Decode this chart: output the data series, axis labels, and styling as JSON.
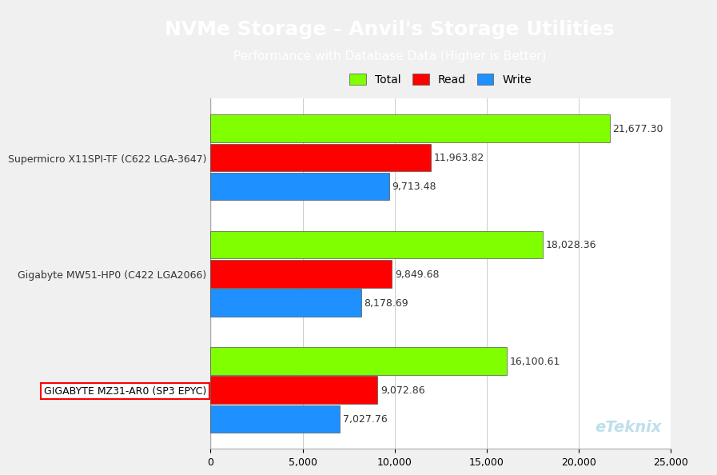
{
  "title": "NVMe Storage - Anvil's Storage Utilities",
  "subtitle": "Performance with Database Data (Higher is Better)",
  "categories": [
    "Supermicro X11SPI-TF (C622 LGA-3647)",
    "Gigabyte MW51-HP0 (C422 LGA2066)",
    "GIGABYTE MZ31-AR0 (SP3 EPYC)"
  ],
  "series": {
    "Total": {
      "color": "#7FFF00",
      "values": [
        21677.3,
        18028.36,
        16100.61
      ]
    },
    "Read": {
      "color": "#FF0000",
      "values": [
        11963.82,
        9849.68,
        9072.86
      ]
    },
    "Write": {
      "color": "#1E90FF",
      "values": [
        9713.48,
        8178.69,
        7027.76
      ]
    }
  },
  "xlim": [
    0,
    25000
  ],
  "xticks": [
    0,
    5000,
    10000,
    15000,
    20000,
    25000
  ],
  "header_bg": "#29ABE2",
  "header_text_color": "#FFFFFF",
  "chart_bg": "#F0F0F0",
  "plot_bg": "#FFFFFF",
  "bar_edge_color": "#555555",
  "highlighted_label_index": 2,
  "highlight_box_color": "#FF0000",
  "eTeknix_color": "#ADD8E6",
  "title_fontsize": 18,
  "subtitle_fontsize": 11,
  "label_fontsize": 9,
  "value_fontsize": 9,
  "legend_fontsize": 10,
  "tick_fontsize": 9
}
